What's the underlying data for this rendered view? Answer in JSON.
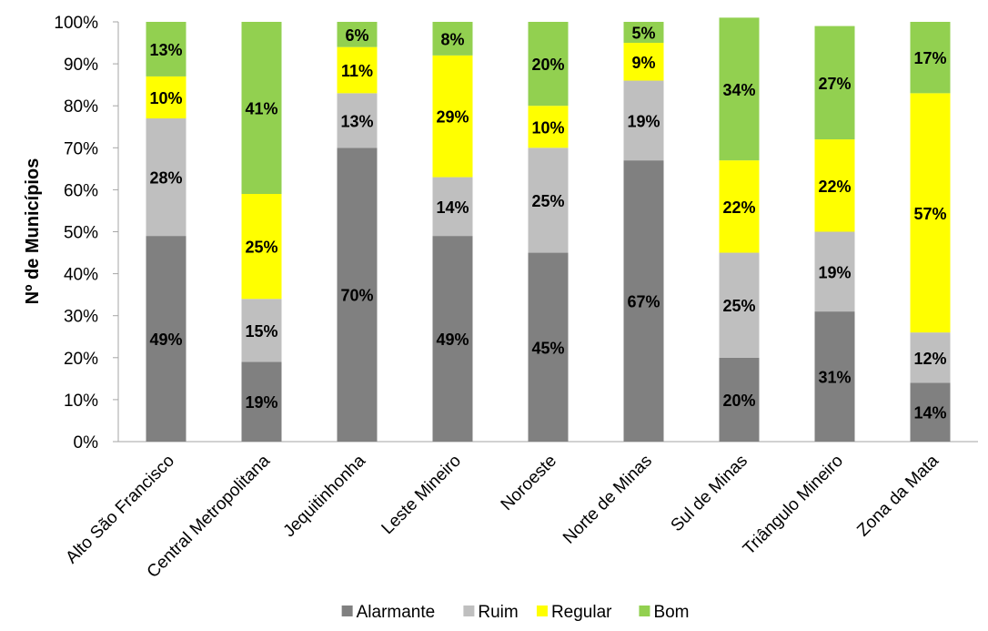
{
  "chart_data": {
    "type": "bar",
    "stacked": true,
    "title": "",
    "xlabel": "",
    "ylabel": "Nº de Municípios",
    "ylim": [
      0,
      100
    ],
    "yticks": [
      "0%",
      "10%",
      "20%",
      "30%",
      "40%",
      "50%",
      "60%",
      "70%",
      "80%",
      "90%",
      "100%"
    ],
    "grid": false,
    "legend_position": "bottom",
    "categories": [
      "Alto São Francisco",
      "Central Metropolitana",
      "Jequitinhonha",
      "Leste Mineiro",
      "Noroeste",
      "Norte de Minas",
      "Sul de Minas",
      "Triângulo Mineiro",
      "Zona da Mata"
    ],
    "series": [
      {
        "name": "Alarmante",
        "color": "#808080",
        "values": [
          49,
          19,
          70,
          49,
          45,
          67,
          20,
          31,
          14
        ],
        "labels": [
          "49%",
          "19%",
          "70%",
          "49%",
          "45%",
          "67%",
          "20%",
          "31%",
          "14%"
        ]
      },
      {
        "name": "Ruim",
        "color": "#bfbfbf",
        "values": [
          28,
          15,
          13,
          14,
          25,
          19,
          25,
          19,
          12
        ],
        "labels": [
          "28%",
          "15%",
          "13%",
          "14%",
          "25%",
          "19%",
          "25%",
          "19%",
          "12%"
        ]
      },
      {
        "name": "Regular",
        "color": "#ffff00",
        "values": [
          10,
          25,
          11,
          29,
          10,
          9,
          22,
          22,
          57
        ],
        "labels": [
          "10%",
          "25%",
          "11%",
          "29%",
          "10%",
          "9%",
          "22%",
          "22%",
          "57%"
        ]
      },
      {
        "name": "Bom",
        "color": "#92d050",
        "values": [
          13,
          41,
          6,
          8,
          20,
          5,
          34,
          27,
          17
        ],
        "labels": [
          "13%",
          "41%",
          "6%",
          "8%",
          "20%",
          "5%",
          "34%",
          "27%",
          "17%"
        ]
      }
    ]
  },
  "colors": {
    "axis": "#a6a6a6",
    "text": "#000000",
    "tick_text": "#000000"
  }
}
